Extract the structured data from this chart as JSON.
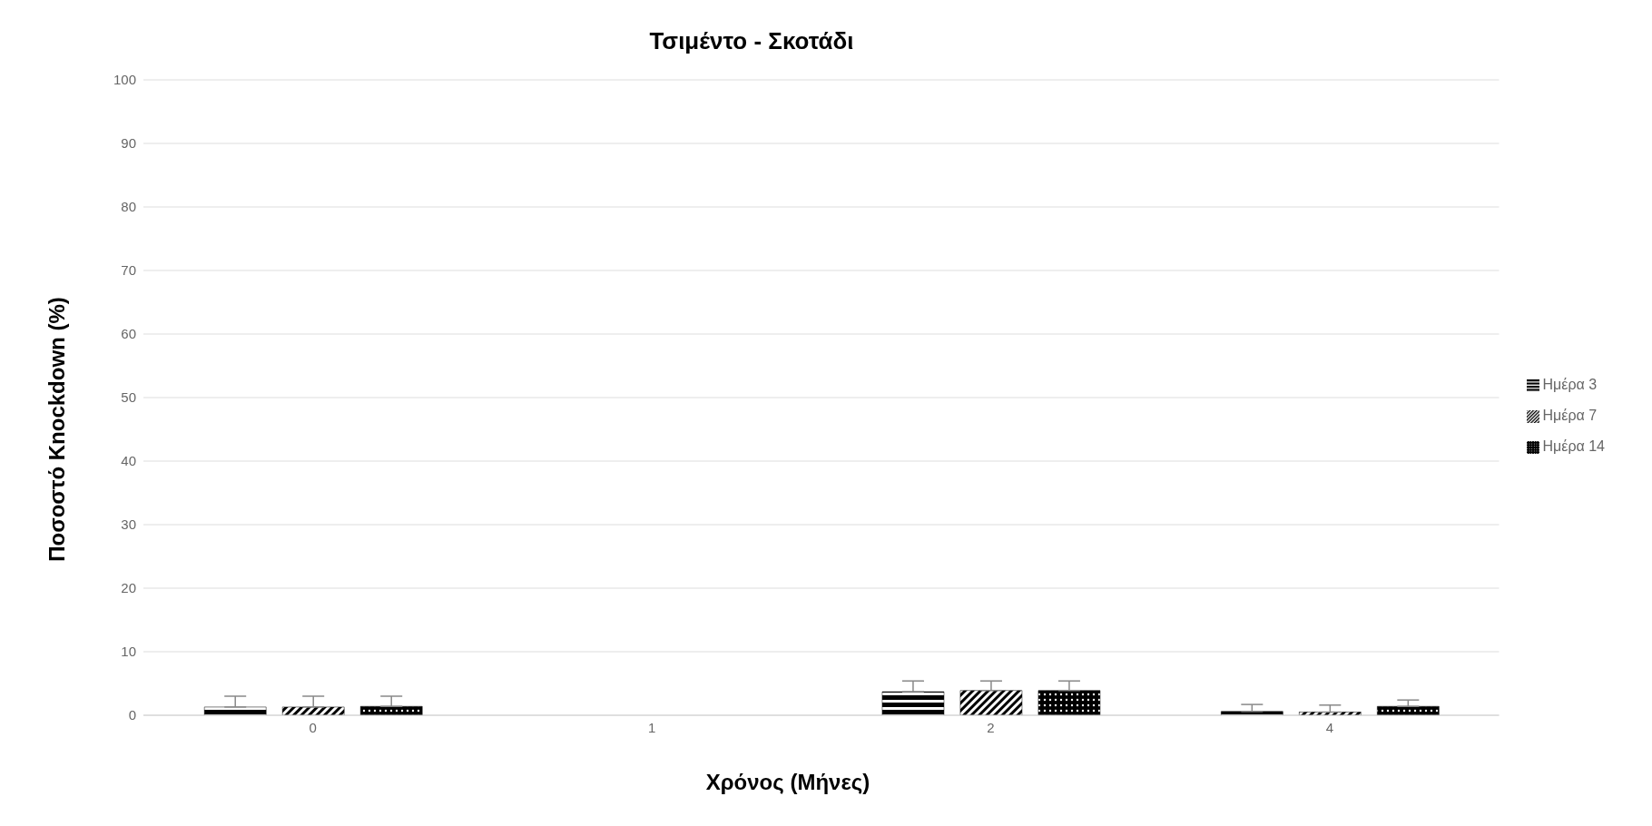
{
  "chart_data": {
    "type": "bar",
    "title": "Τσιμέντο - Σκοτάδι",
    "xlabel": "Χρόνος (Μήνες)",
    "ylabel": "Ποσοστό Knockdown (%)",
    "categories": [
      "0",
      "1",
      "2",
      "4"
    ],
    "series": [
      {
        "name": "Ημέρα 3",
        "color": "#000000",
        "values": [
          1.3,
          null,
          3.7,
          0.6
        ],
        "errors": [
          [
            1.3,
            3.0
          ],
          null,
          [
            3.7,
            5.4
          ],
          [
            0.6,
            1.7
          ]
        ]
      },
      {
        "name": "Ημέρα 7",
        "color": "#000000",
        "values": [
          1.3,
          null,
          3.9,
          0.5
        ],
        "errors": [
          [
            1.3,
            3.0
          ],
          null,
          [
            3.9,
            5.4
          ],
          [
            0.5,
            1.6
          ]
        ]
      },
      {
        "name": "Ημέρα 14",
        "color": "#000000",
        "values": [
          1.4,
          null,
          3.9,
          1.4
        ],
        "errors": [
          [
            1.4,
            3.0
          ],
          null,
          [
            3.9,
            5.4
          ],
          [
            1.4,
            2.4
          ]
        ]
      }
    ],
    "ylim": [
      0,
      100
    ],
    "yticks": [
      0,
      10,
      20,
      30,
      40,
      50,
      60,
      70,
      80,
      90,
      100
    ],
    "grid": "y",
    "legend": "right"
  }
}
